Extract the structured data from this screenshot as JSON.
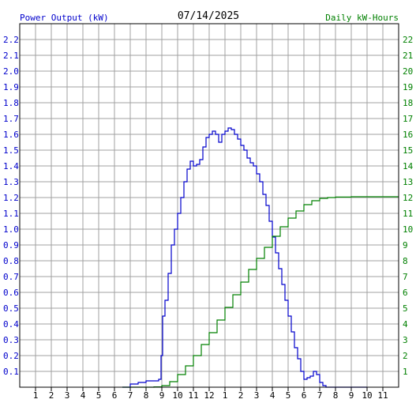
{
  "header": {
    "left_label": "Power Output (kW)",
    "date": "07/14/2025",
    "right_label": "Daily kW-Hours"
  },
  "colors": {
    "power": "#0000cc",
    "energy": "#008000",
    "grid": "#a0a0a0",
    "axis": "#000000"
  },
  "chart_data": {
    "type": "line",
    "title": "07/14/2025",
    "x_tick_labels": [
      "1",
      "2",
      "3",
      "4",
      "5",
      "6",
      "7",
      "8",
      "9",
      "10",
      "11",
      "12",
      "1",
      "2",
      "3",
      "4",
      "5",
      "6",
      "7",
      "8",
      "9",
      "10",
      "11"
    ],
    "xlim": [
      0,
      24
    ],
    "x_unit": "hour of day",
    "y_left": {
      "label": "Power Output (kW)",
      "lim": [
        0,
        2.3
      ],
      "ticks": [
        "0.1",
        "0.2",
        "0.3",
        "0.4",
        "0.5",
        "0.6",
        "0.7",
        "0.8",
        "0.9",
        "1.0",
        "1.1",
        "1.2",
        "1.3",
        "1.4",
        "1.5",
        "1.6",
        "1.7",
        "1.8",
        "1.9",
        "2.0",
        "2.1",
        "2.2"
      ]
    },
    "y_right": {
      "label": "Daily kW-Hours",
      "lim": [
        0,
        23
      ],
      "ticks": [
        "1",
        "2",
        "3",
        "4",
        "5",
        "6",
        "7",
        "8",
        "9",
        "10",
        "11",
        "12",
        "13",
        "14",
        "15",
        "16",
        "17",
        "18",
        "19",
        "20",
        "21",
        "22"
      ]
    },
    "grid": true,
    "series": [
      {
        "name": "Power Output (kW)",
        "axis": "left",
        "x": [
          6.5,
          7.0,
          7.5,
          8.0,
          8.5,
          8.8,
          8.95,
          9.05,
          9.2,
          9.4,
          9.6,
          9.8,
          10.0,
          10.2,
          10.4,
          10.6,
          10.8,
          11.0,
          11.2,
          11.4,
          11.6,
          11.8,
          12.0,
          12.2,
          12.4,
          12.6,
          12.8,
          13.0,
          13.2,
          13.4,
          13.6,
          13.8,
          14.0,
          14.2,
          14.4,
          14.6,
          14.8,
          15.0,
          15.2,
          15.4,
          15.6,
          15.8,
          16.0,
          16.2,
          16.4,
          16.6,
          16.8,
          17.0,
          17.2,
          17.4,
          17.6,
          17.8,
          18.0,
          18.2,
          18.4,
          18.6,
          18.8,
          19.0,
          19.2,
          19.4,
          19.6,
          19.8,
          20.0,
          20.2,
          20.4,
          20.6,
          20.8,
          21.0,
          21.5,
          22.0
        ],
        "y": [
          0.0,
          0.02,
          0.03,
          0.04,
          0.04,
          0.05,
          0.2,
          0.45,
          0.55,
          0.72,
          0.9,
          1.0,
          1.1,
          1.2,
          1.3,
          1.38,
          1.43,
          1.4,
          1.41,
          1.44,
          1.52,
          1.58,
          1.6,
          1.62,
          1.6,
          1.55,
          1.6,
          1.62,
          1.64,
          1.63,
          1.6,
          1.57,
          1.53,
          1.5,
          1.45,
          1.42,
          1.4,
          1.35,
          1.3,
          1.22,
          1.15,
          1.05,
          0.95,
          0.85,
          0.75,
          0.65,
          0.55,
          0.45,
          0.35,
          0.25,
          0.18,
          0.1,
          0.05,
          0.06,
          0.07,
          0.1,
          0.08,
          0.03,
          0.01,
          0.0,
          0.0,
          0.0,
          0.0,
          0.0,
          0.0,
          0.0,
          0.0,
          0.0,
          0.0,
          0.0
        ]
      },
      {
        "name": "Daily kW-Hours",
        "axis": "right",
        "x": [
          6.5,
          7.0,
          7.5,
          8.0,
          8.5,
          9.0,
          9.5,
          10.0,
          10.5,
          11.0,
          11.5,
          12.0,
          12.5,
          13.0,
          13.5,
          14.0,
          14.5,
          15.0,
          15.5,
          16.0,
          16.5,
          17.0,
          17.5,
          18.0,
          18.5,
          19.0,
          19.5,
          20.0,
          21.0,
          22.0,
          23.0,
          24.0
        ],
        "y": [
          0.0,
          0.0,
          0.0,
          0.0,
          0.02,
          0.1,
          0.35,
          0.8,
          1.35,
          2.0,
          2.7,
          3.45,
          4.25,
          5.05,
          5.85,
          6.65,
          7.45,
          8.15,
          8.85,
          9.55,
          10.15,
          10.7,
          11.15,
          11.55,
          11.8,
          11.95,
          12.0,
          12.03,
          12.05,
          12.05,
          12.05,
          12.05
        ]
      }
    ]
  }
}
